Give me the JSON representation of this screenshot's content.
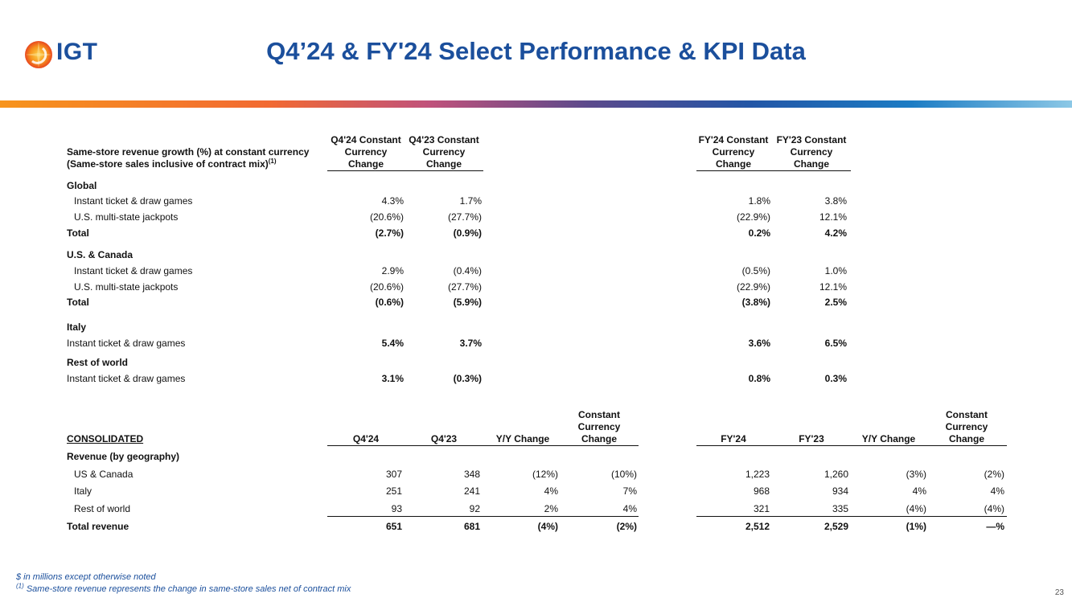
{
  "brand": {
    "logo_text": "IGT"
  },
  "title": "Q4’24 & FY'24 Select Performance & KPI Data",
  "colors": {
    "title": "#1b4f9c",
    "accent_orange": "#f7941d",
    "accent_blue": "#1c7cc4"
  },
  "same_store": {
    "heading_line1": "Same-store revenue growth (%) at constant currency",
    "heading_line2": "(Same-store sales inclusive of contract mix)",
    "heading_sup": "(1)",
    "cols": [
      {
        "l1": "Q4'24 Constant",
        "l2": "Currency",
        "l3": "Change"
      },
      {
        "l1": "Q4'23 Constant",
        "l2": "Currency",
        "l3": "Change"
      },
      {
        "l1": "FY'24 Constant",
        "l2": "Currency",
        "l3": "Change"
      },
      {
        "l1": "FY'23 Constant",
        "l2": "Currency",
        "l3": "Change"
      }
    ],
    "rows": [
      {
        "label": "Global",
        "kind": "section",
        "v": [
          "",
          "",
          "",
          ""
        ]
      },
      {
        "label": "Instant ticket & draw games",
        "kind": "sub",
        "v": [
          "4.3%",
          "1.7%",
          "1.8%",
          "3.8%"
        ]
      },
      {
        "label": "U.S. multi-state jackpots",
        "kind": "sub",
        "v": [
          "(20.6%)",
          "(27.7%)",
          "(22.9%)",
          "12.1%"
        ]
      },
      {
        "label": "Total",
        "kind": "total",
        "v": [
          "(2.7%)",
          "(0.9%)",
          "0.2%",
          "4.2%"
        ]
      },
      {
        "label": "U.S. & Canada",
        "kind": "section",
        "v": [
          "",
          "",
          "",
          ""
        ]
      },
      {
        "label": "Instant ticket & draw games",
        "kind": "sub",
        "v": [
          "2.9%",
          "(0.4%)",
          "(0.5%)",
          "1.0%"
        ]
      },
      {
        "label": "U.S. multi-state jackpots",
        "kind": "sub",
        "v": [
          "(20.6%)",
          "(27.7%)",
          "(22.9%)",
          "12.1%"
        ]
      },
      {
        "label": "Total",
        "kind": "total",
        "v": [
          "(0.6%)",
          "(5.9%)",
          "(3.8%)",
          "2.5%"
        ]
      },
      {
        "label": "Italy",
        "kind": "section",
        "v": [
          "",
          "",
          "",
          ""
        ]
      },
      {
        "label": "Instant ticket & draw games",
        "kind": "plainbold",
        "v": [
          "5.4%",
          "3.7%",
          "3.6%",
          "6.5%"
        ]
      },
      {
        "label": "Rest of world",
        "kind": "section",
        "v": [
          "",
          "",
          "",
          ""
        ]
      },
      {
        "label": "Instant ticket & draw games",
        "kind": "plainbold",
        "v": [
          "3.1%",
          "(0.3%)",
          "0.8%",
          "0.3%"
        ]
      }
    ]
  },
  "consolidated": {
    "heading": "CONSOLIDATED",
    "cols": [
      {
        "l1": "",
        "l2": "",
        "l3": "Q4'24"
      },
      {
        "l1": "",
        "l2": "",
        "l3": "Q4'23"
      },
      {
        "l1": "",
        "l2": "",
        "l3": "Y/Y Change"
      },
      {
        "l1": "Constant",
        "l2": "Currency",
        "l3": "Change"
      },
      {
        "l1": "",
        "l2": "",
        "l3": "FY'24"
      },
      {
        "l1": "",
        "l2": "",
        "l3": "FY'23"
      },
      {
        "l1": "",
        "l2": "",
        "l3": "Y/Y Change"
      },
      {
        "l1": "Constant",
        "l2": "Currency",
        "l3": "Change"
      }
    ],
    "rows": [
      {
        "label": "Revenue (by geography)",
        "kind": "section",
        "v": [
          "",
          "",
          "",
          "",
          "",
          "",
          "",
          ""
        ]
      },
      {
        "label": "US & Canada",
        "kind": "sub",
        "v": [
          "307",
          "348",
          "(12%)",
          "(10%)",
          "1,223",
          "1,260",
          "(3%)",
          "(2%)"
        ]
      },
      {
        "label": "Italy",
        "kind": "sub",
        "v": [
          "251",
          "241",
          "4%",
          "7%",
          "968",
          "934",
          "4%",
          "4%"
        ]
      },
      {
        "label": "Rest of world",
        "kind": "sub",
        "v": [
          "93",
          "92",
          "2%",
          "4%",
          "321",
          "335",
          "(4%)",
          "(4%)"
        ]
      },
      {
        "label": "Total revenue",
        "kind": "total",
        "v": [
          "651",
          "681",
          "(4%)",
          "(2%)",
          "2,512",
          "2,529",
          "(1%)",
          "—%"
        ]
      }
    ]
  },
  "footnotes": {
    "line1": "$ in millions except otherwise noted",
    "line2_sup": "(1)",
    "line2": "Same-store revenue represents the change in same-store sales net of contract  mix"
  },
  "page_number": "23"
}
